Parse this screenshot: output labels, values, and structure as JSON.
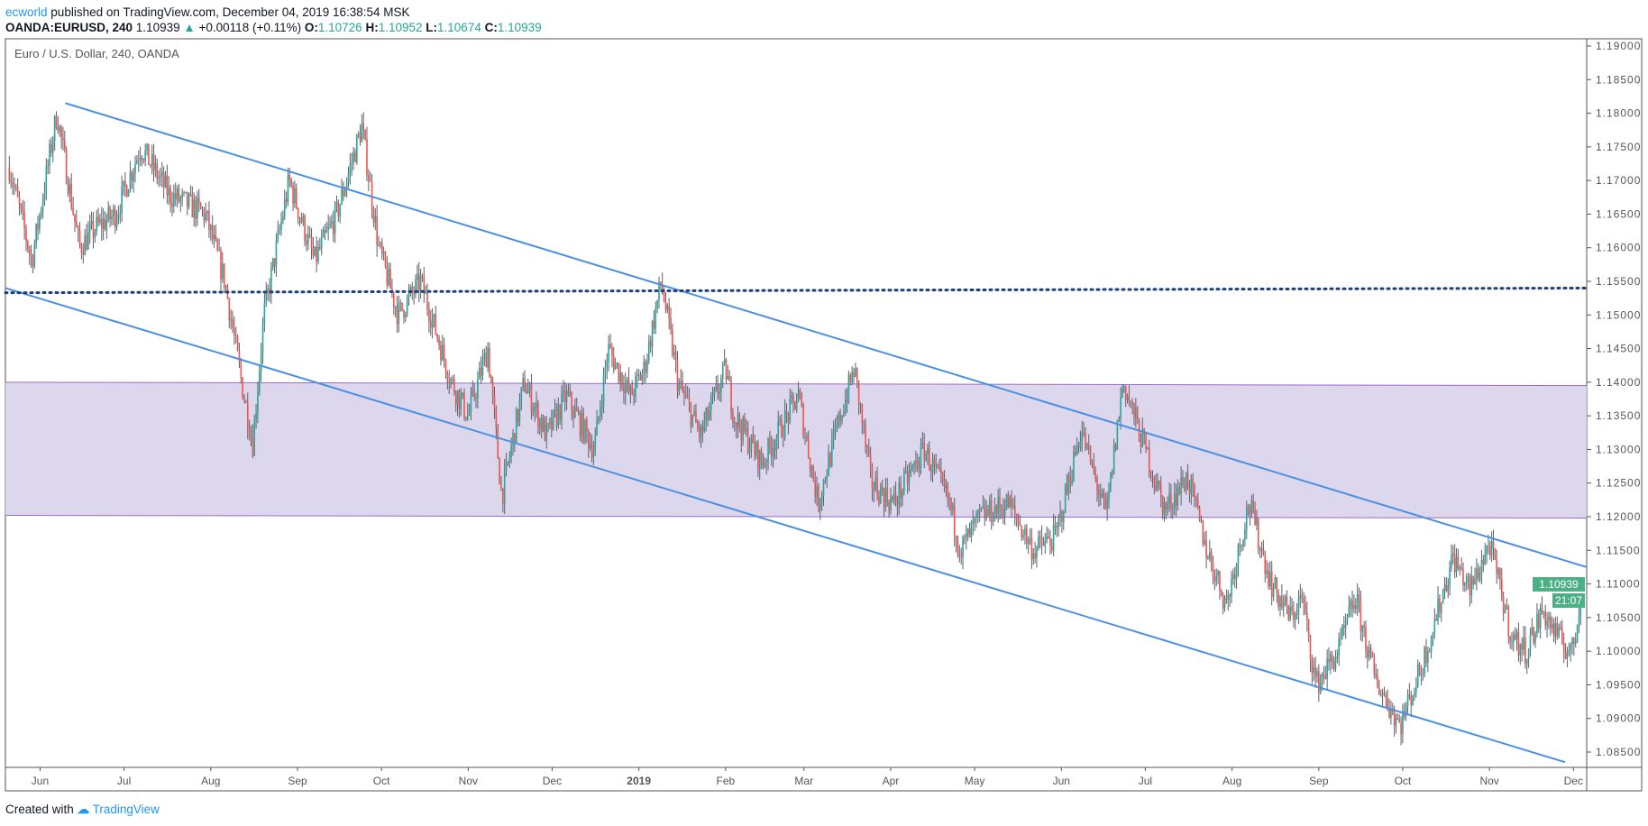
{
  "header": {
    "author": "ecworld",
    "published": "published on TradingView.com, December 04, 2019 16:38:54 MSK",
    "symbol": "OANDA:EURUSD, 240",
    "last": "1.10939",
    "change": "+0.00118 (+0.11%)",
    "o_label": "O:",
    "o": "1.10726",
    "h_label": "H:",
    "h": "1.10952",
    "l_label": "L:",
    "l": "1.10674",
    "c_label": "C:",
    "c": "1.10939"
  },
  "footer": {
    "created_with": "Created with",
    "brand": "TradingView"
  },
  "colors": {
    "up": "#26a69a",
    "down": "#ef5350",
    "wick": "#5d606b",
    "channel": "#4a90e2",
    "level": "#1e3f7a",
    "zone": "#d8d3ea",
    "zone_border": "#9c6bc4",
    "price_tag": "#4caf86"
  },
  "chart_data": {
    "type": "candlestick",
    "title": "Euro / U.S. Dollar, 240, OANDA",
    "x_unit": "days since 2018-06-01",
    "xlim": [
      -12.4,
      552.75
    ],
    "ylim": [
      1.0825,
      1.1915
    ],
    "y_ticks": [
      "1.19000",
      "1.18500",
      "1.18000",
      "1.17500",
      "1.17000",
      "1.16500",
      "1.16000",
      "1.15500",
      "1.15000",
      "1.14500",
      "1.14000",
      "1.13500",
      "1.13000",
      "1.12500",
      "1.12000",
      "1.11500",
      "1.11000",
      "1.10500",
      "1.10000",
      "1.09500",
      "1.09000",
      "1.08500"
    ],
    "x_ticks": [
      {
        "label": "Jun",
        "day": 0
      },
      {
        "label": "Jul",
        "day": 30
      },
      {
        "label": "Aug",
        "day": 61
      },
      {
        "label": "Sep",
        "day": 92
      },
      {
        "label": "Oct",
        "day": 122
      },
      {
        "label": "Nov",
        "day": 153
      },
      {
        "label": "Dec",
        "day": 183
      },
      {
        "label": "2019",
        "day": 214
      },
      {
        "label": "Feb",
        "day": 245
      },
      {
        "label": "Mar",
        "day": 273
      },
      {
        "label": "Apr",
        "day": 304
      },
      {
        "label": "May",
        "day": 334
      },
      {
        "label": "Jun",
        "day": 365
      },
      {
        "label": "Jul",
        "day": 395
      },
      {
        "label": "Aug",
        "day": 426
      },
      {
        "label": "Sep",
        "day": 457
      },
      {
        "label": "Oct",
        "day": 487
      },
      {
        "label": "Nov",
        "day": 518
      },
      {
        "label": "Dec",
        "day": 548
      }
    ],
    "price_path": [
      [
        -11,
        1.172
      ],
      [
        -3,
        1.158
      ],
      [
        6,
        1.18
      ],
      [
        14,
        1.16
      ],
      [
        20,
        1.163
      ],
      [
        27,
        1.165
      ],
      [
        36,
        1.175
      ],
      [
        46,
        1.168
      ],
      [
        59,
        1.165
      ],
      [
        66,
        1.155
      ],
      [
        72,
        1.14
      ],
      [
        76,
        1.131
      ],
      [
        80,
        1.15
      ],
      [
        89,
        1.17
      ],
      [
        98,
        1.158
      ],
      [
        106,
        1.165
      ],
      [
        115,
        1.178
      ],
      [
        121,
        1.16
      ],
      [
        128,
        1.15
      ],
      [
        136,
        1.155
      ],
      [
        147,
        1.14
      ],
      [
        153,
        1.135
      ],
      [
        160,
        1.145
      ],
      [
        165,
        1.123
      ],
      [
        173,
        1.14
      ],
      [
        181,
        1.132
      ],
      [
        188,
        1.138
      ],
      [
        198,
        1.13
      ],
      [
        203,
        1.145
      ],
      [
        211,
        1.138
      ],
      [
        216,
        1.142
      ],
      [
        222,
        1.155
      ],
      [
        228,
        1.14
      ],
      [
        236,
        1.132
      ],
      [
        245,
        1.142
      ],
      [
        248,
        1.135
      ],
      [
        258,
        1.128
      ],
      [
        271,
        1.138
      ],
      [
        278,
        1.122
      ],
      [
        286,
        1.135
      ],
      [
        291,
        1.142
      ],
      [
        297,
        1.125
      ],
      [
        305,
        1.122
      ],
      [
        316,
        1.13
      ],
      [
        325,
        1.122
      ],
      [
        329,
        1.115
      ],
      [
        336,
        1.12
      ],
      [
        346,
        1.122
      ],
      [
        355,
        1.115
      ],
      [
        363,
        1.117
      ],
      [
        372,
        1.133
      ],
      [
        381,
        1.12
      ],
      [
        387,
        1.14
      ],
      [
        395,
        1.13
      ],
      [
        402,
        1.121
      ],
      [
        410,
        1.126
      ],
      [
        417,
        1.115
      ],
      [
        424,
        1.107
      ],
      [
        432,
        1.122
      ],
      [
        440,
        1.11
      ],
      [
        447,
        1.105
      ],
      [
        451,
        1.108
      ],
      [
        456,
        1.095
      ],
      [
        464,
        1.1
      ],
      [
        470,
        1.108
      ],
      [
        477,
        1.096
      ],
      [
        486,
        1.089
      ],
      [
        494,
        1.098
      ],
      [
        505,
        1.114
      ],
      [
        511,
        1.109
      ],
      [
        518,
        1.116
      ],
      [
        526,
        1.102
      ],
      [
        531,
        1.1
      ],
      [
        537,
        1.106
      ],
      [
        544,
        1.101
      ],
      [
        548,
        1.1
      ],
      [
        551,
        1.10939
      ]
    ],
    "drawings": {
      "upper_channel": [
        [
          9,
          1.1815
        ],
        [
          552.75,
          1.1125
        ]
      ],
      "lower_channel": [
        [
          -12.4,
          1.154
        ],
        [
          545,
          1.0835
        ]
      ],
      "horizontal_level": [
        [
          -12.4,
          1.1533
        ],
        [
          552.75,
          1.154
        ]
      ],
      "zone": {
        "left": [
          1.14,
          1.1202
        ],
        "right": [
          1.1395,
          1.1198
        ]
      }
    },
    "last_price_label": "1.10939",
    "countdown_label": "21:07"
  }
}
